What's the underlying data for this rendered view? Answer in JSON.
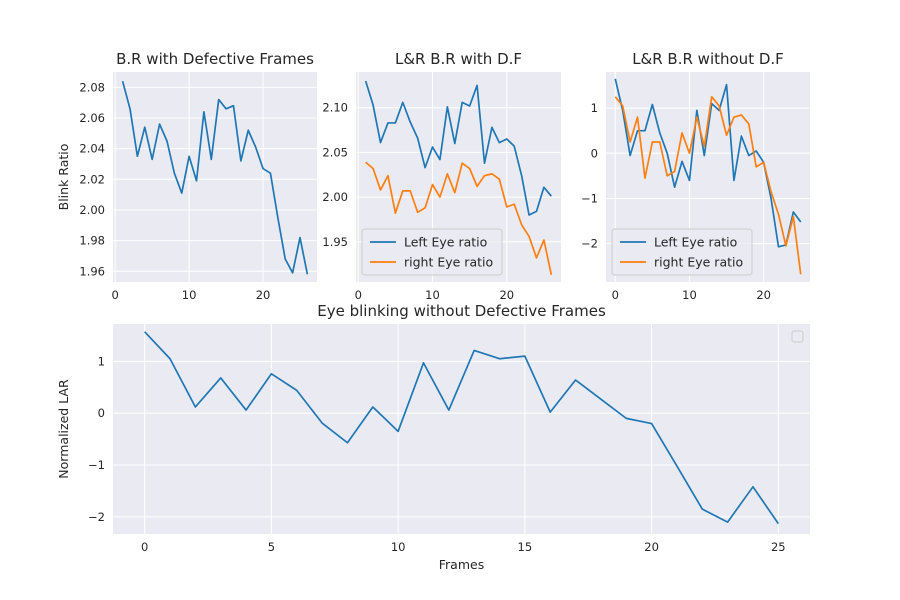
{
  "chart_data": [
    {
      "type": "line",
      "title": "B.R with Defective Frames",
      "xlabel": "",
      "ylabel": "Blink Ratio",
      "xlim": [
        -0.3,
        27.3
      ],
      "ylim": [
        1.953,
        2.09
      ],
      "xticks": [
        0,
        10,
        20
      ],
      "yticks": [
        1.96,
        1.98,
        2.0,
        2.02,
        2.04,
        2.06,
        2.08
      ],
      "ytick_labels": [
        "1.96",
        "1.98",
        "2.00",
        "2.02",
        "2.04",
        "2.06",
        "2.08"
      ],
      "grid": true,
      "series": [
        {
          "color": "#1f77b4",
          "x": [
            1,
            2,
            3,
            4,
            5,
            6,
            7,
            8,
            9,
            10,
            11,
            12,
            13,
            14,
            15,
            16,
            17,
            18,
            19,
            20,
            21,
            22,
            23,
            24,
            25,
            26
          ],
          "y": [
            2.084,
            2.066,
            2.035,
            2.054,
            2.033,
            2.056,
            2.045,
            2.024,
            2.011,
            2.035,
            2.019,
            2.064,
            2.033,
            2.072,
            2.066,
            2.068,
            2.032,
            2.052,
            2.041,
            2.027,
            2.024,
            1.995,
            1.968,
            1.959,
            1.982,
            1.958
          ]
        }
      ]
    },
    {
      "type": "line",
      "title": "L&R B.R with D.F",
      "xlabel": "",
      "ylabel": "",
      "xlim": [
        -0.3,
        27.3
      ],
      "ylim": [
        1.905,
        2.14
      ],
      "xticks": [
        0,
        10,
        20
      ],
      "yticks": [
        1.95,
        2.0,
        2.05,
        2.1
      ],
      "ytick_labels": [
        "1.95",
        "2.00",
        "2.05",
        "2.10"
      ],
      "grid": true,
      "legend": "lower-left",
      "series": [
        {
          "name": "Left Eye ratio",
          "color": "#1f77b4",
          "x": [
            1,
            2,
            3,
            4,
            5,
            6,
            7,
            8,
            9,
            10,
            11,
            12,
            13,
            14,
            15,
            16,
            17,
            18,
            19,
            20,
            21,
            22,
            23,
            24,
            25,
            26
          ],
          "y": [
            2.13,
            2.103,
            2.061,
            2.083,
            2.083,
            2.106,
            2.084,
            2.066,
            2.033,
            2.056,
            2.042,
            2.101,
            2.06,
            2.106,
            2.102,
            2.125,
            2.038,
            2.078,
            2.061,
            2.065,
            2.057,
            2.024,
            1.98,
            1.984,
            2.011,
            2.001
          ]
        },
        {
          "name": "right Eye ratio",
          "color": "#ff7f0e",
          "x": [
            1,
            2,
            3,
            4,
            5,
            6,
            7,
            8,
            9,
            10,
            11,
            12,
            13,
            14,
            15,
            16,
            17,
            18,
            19,
            20,
            21,
            22,
            23,
            24,
            25,
            26
          ],
          "y": [
            2.039,
            2.032,
            2.008,
            2.024,
            1.982,
            2.007,
            2.007,
            1.983,
            1.988,
            2.014,
            2.0,
            2.026,
            2.005,
            2.038,
            2.032,
            2.012,
            2.024,
            2.026,
            2.02,
            1.989,
            1.992,
            1.969,
            1.956,
            1.932,
            1.952,
            1.913
          ]
        }
      ]
    },
    {
      "type": "line",
      "title": "L&R B.R without D.F",
      "xlabel": "",
      "ylabel": "",
      "xlim": [
        -1.25,
        26.25
      ],
      "ylim": [
        -2.85,
        1.8
      ],
      "xticks": [
        0,
        10,
        20
      ],
      "yticks": [
        -2,
        -1,
        0,
        1
      ],
      "ytick_labels": [
        "−2",
        "−1",
        "0",
        "1"
      ],
      "grid": true,
      "legend": "lower-left",
      "series": [
        {
          "name": "Left Eye ratio",
          "color": "#1f77b4",
          "x": [
            0,
            1,
            2,
            3,
            4,
            5,
            6,
            7,
            8,
            9,
            10,
            11,
            12,
            13,
            14,
            15,
            16,
            17,
            18,
            19,
            20,
            21,
            22,
            23,
            24,
            25
          ],
          "y": [
            1.65,
            0.95,
            -0.05,
            0.5,
            0.5,
            1.08,
            0.45,
            0.0,
            -0.75,
            -0.18,
            -0.6,
            0.95,
            -0.05,
            1.1,
            0.95,
            1.52,
            -0.6,
            0.38,
            -0.05,
            0.05,
            -0.2,
            -1.0,
            -2.07,
            -2.03,
            -1.3,
            -1.52
          ]
        },
        {
          "name": "right Eye ratio",
          "color": "#ff7f0e",
          "x": [
            0,
            1,
            2,
            3,
            4,
            5,
            6,
            7,
            8,
            9,
            10,
            11,
            12,
            13,
            14,
            15,
            16,
            17,
            18,
            19,
            20,
            21,
            22,
            23,
            24,
            25
          ],
          "y": [
            1.25,
            1.05,
            0.25,
            0.8,
            -0.55,
            0.25,
            0.25,
            -0.5,
            -0.4,
            0.45,
            0.0,
            0.8,
            0.15,
            1.25,
            1.05,
            0.4,
            0.8,
            0.85,
            0.65,
            -0.3,
            -0.2,
            -0.85,
            -1.35,
            -2.05,
            -1.4,
            -2.68
          ]
        }
      ]
    },
    {
      "type": "line",
      "title": "Eye blinking without Defective Frames",
      "xlabel": "Frames",
      "ylabel": "Normalized LAR",
      "xlim": [
        -1.25,
        26.25
      ],
      "ylim": [
        -2.33,
        1.72
      ],
      "xticks": [
        0,
        5,
        10,
        15,
        20,
        25
      ],
      "yticks": [
        -2,
        -1,
        0,
        1
      ],
      "ytick_labels": [
        "−2",
        "−1",
        "0",
        "1"
      ],
      "grid": true,
      "legend": "top-right (empty)",
      "series": [
        {
          "color": "#1f77b4",
          "x": [
            0,
            1,
            2,
            3,
            4,
            5,
            6,
            7,
            8,
            9,
            10,
            11,
            12,
            13,
            14,
            15,
            16,
            17,
            18,
            19,
            20,
            21,
            22,
            23,
            24,
            25
          ],
          "y": [
            1.57,
            1.05,
            0.12,
            0.68,
            0.06,
            0.76,
            0.44,
            -0.19,
            -0.57,
            0.12,
            -0.35,
            0.97,
            0.06,
            1.21,
            1.05,
            1.1,
            0.02,
            0.64,
            0.27,
            -0.1,
            -0.2,
            -1.02,
            -1.85,
            -2.1,
            -1.42,
            -2.13
          ]
        }
      ]
    }
  ]
}
